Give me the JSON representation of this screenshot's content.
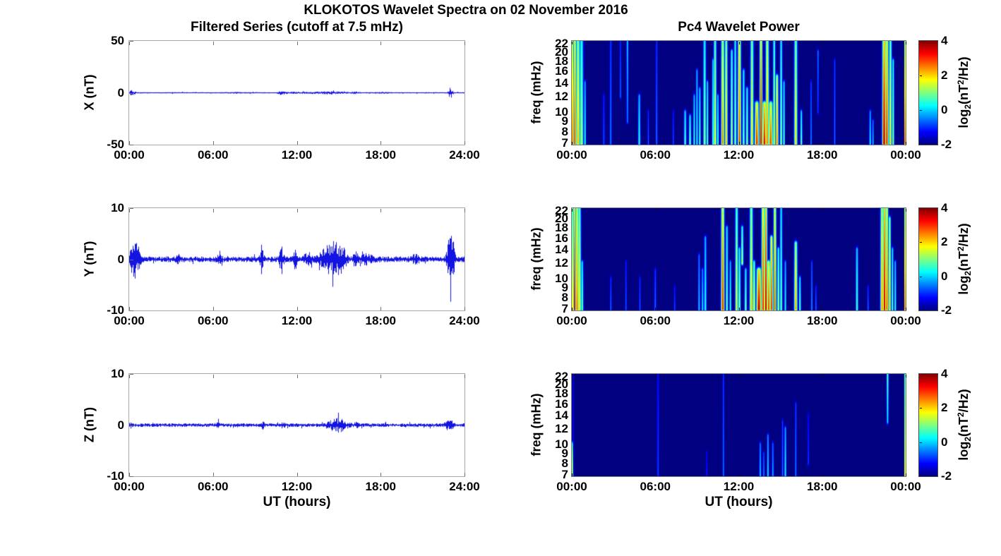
{
  "figure": {
    "title": "KLOKOTOS Wavelet Spectra on 02 November 2016",
    "left_title": "Filtered Series (cutoff at 7.5 mHz)",
    "right_title": "Pc4 Wavelet Power",
    "xlabel": "UT (hours)"
  },
  "axes": {
    "x_ticks_left": [
      "00:00",
      "06:00",
      "12:00",
      "18:00",
      "24:00"
    ],
    "x_ticks_right": [
      "00:00",
      "06:00",
      "12:00",
      "18:00",
      "00:00"
    ],
    "time_range_hours": [
      0,
      24
    ],
    "freq_ticks_mhz": [
      7,
      8,
      9,
      10,
      12,
      14,
      16,
      18,
      20,
      22
    ],
    "freq_range_mhz": [
      6.9,
      22.7
    ],
    "freq_scale": "log",
    "line_color": "#0000e0",
    "background_color": "#ffffff"
  },
  "colorbar": {
    "ticks": [
      4,
      2,
      0,
      -2
    ],
    "range": [
      -2,
      4
    ],
    "colormap": "jet",
    "label_parts": {
      "p1": "log",
      "s1": "2",
      "p2": "(nT",
      "s2": "2",
      "p3": "/Hz)"
    }
  },
  "chart_data": [
    {
      "type": "line",
      "panel": "X filtered series",
      "ylabel": "X (nT)",
      "ylim": [
        -50,
        50
      ],
      "yticks": [
        50,
        0,
        -50
      ],
      "x_hours": [
        0,
        24
      ],
      "baseline": 0,
      "noise_amp_nT": 0.4,
      "bursts_t_w_amp": [
        [
          0.12,
          0.1,
          1.5
        ],
        [
          0.3,
          0.15,
          0.8
        ],
        [
          7.5,
          0.3,
          0.3
        ],
        [
          10.9,
          0.15,
          1.2
        ],
        [
          11.5,
          0.3,
          0.4
        ],
        [
          13.5,
          1.0,
          0.5
        ],
        [
          14.8,
          0.5,
          0.6
        ],
        [
          16.2,
          0.2,
          0.5
        ],
        [
          18.0,
          0.5,
          0.3
        ],
        [
          22.95,
          0.08,
          2.8
        ],
        [
          23.1,
          0.07,
          2.2
        ]
      ]
    },
    {
      "type": "line",
      "panel": "Y filtered series",
      "ylabel": "Y (nT)",
      "ylim": [
        -10,
        10
      ],
      "yticks": [
        10,
        0,
        -10
      ],
      "x_hours": [
        0,
        24
      ],
      "baseline": 0,
      "noise_amp_nT": 0.4,
      "bursts_t_w_amp": [
        [
          0.2,
          0.1,
          1.8
        ],
        [
          0.45,
          0.15,
          2.2
        ],
        [
          0.7,
          0.1,
          1.2
        ],
        [
          3.5,
          0.1,
          0.5
        ],
        [
          6.5,
          0.1,
          0.9
        ],
        [
          9.5,
          0.08,
          1.8
        ],
        [
          10.9,
          0.1,
          1.6
        ],
        [
          11.9,
          0.1,
          1.2
        ],
        [
          12.8,
          0.15,
          0.9
        ],
        [
          14.2,
          0.4,
          1.4
        ],
        [
          14.8,
          0.3,
          1.6
        ],
        [
          15.3,
          0.2,
          1.2
        ],
        [
          16.2,
          0.1,
          1.2
        ],
        [
          17.0,
          0.3,
          0.5
        ],
        [
          20.5,
          0.2,
          0.4
        ],
        [
          22.9,
          0.12,
          2.6
        ],
        [
          23.15,
          0.1,
          3.2
        ]
      ]
    },
    {
      "type": "line",
      "panel": "Z filtered series",
      "ylabel": "Z (nT)",
      "ylim": [
        -10,
        10
      ],
      "yticks": [
        10,
        0,
        -10
      ],
      "x_hours": [
        0,
        24
      ],
      "baseline": 0,
      "noise_amp_nT": 0.25,
      "bursts_t_w_amp": [
        [
          0.1,
          0.1,
          0.3
        ],
        [
          6.3,
          0.08,
          0.5
        ],
        [
          9.6,
          0.06,
          0.7
        ],
        [
          11.0,
          0.1,
          0.3
        ],
        [
          14.9,
          0.45,
          0.9
        ],
        [
          16.3,
          0.1,
          0.4
        ],
        [
          22.8,
          0.15,
          0.5
        ],
        [
          23.1,
          0.1,
          0.4
        ]
      ]
    },
    {
      "type": "heatmap",
      "panel": "X wavelet power",
      "ylabel": "freq (mHz)",
      "value_units": "log2(nT^2/Hz)",
      "background_power": -2,
      "events_t_w_fbright_ffar_power": [
        [
          0.05,
          0.03,
          7,
          22.7,
          4.3
        ],
        [
          0.22,
          0.07,
          7,
          22.7,
          3.3
        ],
        [
          0.45,
          0.1,
          7,
          22.7,
          2.3
        ],
        [
          0.7,
          0.09,
          7,
          22.7,
          1.5
        ],
        [
          0.95,
          0.05,
          7,
          14,
          0.6
        ],
        [
          2.3,
          0.05,
          7,
          12,
          -0.7
        ],
        [
          2.8,
          0.05,
          7,
          22.7,
          -0.4
        ],
        [
          3.5,
          0.04,
          12,
          22.7,
          -0.5
        ],
        [
          4.0,
          0.05,
          22.7,
          9,
          0.1
        ],
        [
          4.85,
          0.06,
          7,
          12,
          0.6
        ],
        [
          5.5,
          0.04,
          7,
          10,
          -0.6
        ],
        [
          6.1,
          0.05,
          7,
          22.7,
          -0.5
        ],
        [
          7.3,
          0.04,
          7,
          10,
          -0.7
        ],
        [
          8.15,
          0.06,
          7,
          10,
          0.9
        ],
        [
          8.5,
          0.06,
          7,
          9.5,
          1.1
        ],
        [
          8.8,
          0.05,
          7,
          12,
          0.7
        ],
        [
          9.0,
          0.05,
          7,
          16,
          0.6
        ],
        [
          9.2,
          0.05,
          7,
          13,
          0.9
        ],
        [
          9.55,
          0.07,
          7,
          22.7,
          1.3
        ],
        [
          9.75,
          0.05,
          7,
          14,
          1.0
        ],
        [
          10.15,
          0.05,
          7,
          18,
          0.9
        ],
        [
          10.3,
          0.07,
          7,
          22.7,
          1.9
        ],
        [
          10.5,
          0.05,
          7,
          12,
          0.9
        ],
        [
          10.85,
          0.08,
          7,
          22.7,
          2.7
        ],
        [
          11.1,
          0.07,
          7,
          22.7,
          2.3
        ],
        [
          11.5,
          0.06,
          7,
          20,
          1.6
        ],
        [
          11.75,
          0.06,
          7,
          22.7,
          1.3
        ],
        [
          12.05,
          0.08,
          7,
          22.7,
          3.1
        ],
        [
          12.35,
          0.06,
          7,
          16,
          1.1
        ],
        [
          12.6,
          0.06,
          7,
          13,
          1.3
        ],
        [
          12.95,
          0.08,
          7,
          22.7,
          2.1
        ],
        [
          13.3,
          0.1,
          7,
          11,
          3.3
        ],
        [
          13.6,
          0.07,
          7,
          22.7,
          3.7
        ],
        [
          13.85,
          0.1,
          7,
          11,
          3.5
        ],
        [
          14.05,
          0.08,
          7,
          22.7,
          2.7
        ],
        [
          14.3,
          0.1,
          7,
          11,
          3.1
        ],
        [
          14.55,
          0.06,
          7,
          22.7,
          1.7
        ],
        [
          14.75,
          0.07,
          7,
          15,
          2.7
        ],
        [
          15.05,
          0.06,
          7,
          22.7,
          1.3
        ],
        [
          15.25,
          0.05,
          7,
          14,
          1.0
        ],
        [
          16.1,
          0.08,
          7,
          22.7,
          2.1
        ],
        [
          16.5,
          0.05,
          7,
          10,
          1.1
        ],
        [
          17.2,
          0.04,
          7,
          14,
          -0.3
        ],
        [
          17.7,
          0.04,
          20,
          10,
          -0.4
        ],
        [
          18.9,
          0.04,
          7,
          18,
          -0.4
        ],
        [
          21.45,
          0.05,
          7,
          10,
          0.4
        ],
        [
          21.65,
          0.04,
          7,
          9,
          0.2
        ],
        [
          22.45,
          0.09,
          7,
          22.7,
          3.9
        ],
        [
          22.65,
          0.08,
          7,
          22.7,
          3.4
        ],
        [
          22.9,
          0.07,
          7,
          22.7,
          2.1
        ],
        [
          23.1,
          0.05,
          7,
          18,
          1.4
        ],
        [
          23.95,
          0.03,
          7,
          22.7,
          4.3
        ]
      ]
    },
    {
      "type": "heatmap",
      "panel": "Y wavelet power",
      "ylabel": "freq (mHz)",
      "value_units": "log2(nT^2/Hz)",
      "background_power": -2,
      "events_t_w_fbright_ffar_power": [
        [
          0.05,
          0.03,
          7,
          22.7,
          3.2
        ],
        [
          0.2,
          0.06,
          7,
          22.7,
          3.9
        ],
        [
          0.38,
          0.08,
          7,
          22.7,
          2.9
        ],
        [
          0.55,
          0.08,
          7,
          22.7,
          2.0
        ],
        [
          0.75,
          0.06,
          7,
          12,
          1.1
        ],
        [
          2.8,
          0.04,
          7,
          10,
          -0.5
        ],
        [
          3.9,
          0.04,
          7,
          12,
          -0.6
        ],
        [
          4.9,
          0.04,
          7,
          10,
          -0.6
        ],
        [
          6.0,
          0.05,
          7,
          11,
          -0.5
        ],
        [
          7.4,
          0.04,
          7,
          9,
          -0.7
        ],
        [
          9.15,
          0.05,
          7,
          13,
          0.1
        ],
        [
          9.4,
          0.05,
          7,
          11,
          0.3
        ],
        [
          9.6,
          0.06,
          7,
          16,
          0.6
        ],
        [
          10.85,
          0.08,
          7,
          22.7,
          3.3
        ],
        [
          11.15,
          0.06,
          7,
          18,
          1.1
        ],
        [
          11.4,
          0.05,
          7,
          12,
          0.7
        ],
        [
          11.85,
          0.07,
          7,
          22.7,
          1.9
        ],
        [
          12.05,
          0.06,
          7,
          14,
          1.3
        ],
        [
          12.25,
          0.06,
          12,
          18,
          1.6
        ],
        [
          12.5,
          0.06,
          7,
          11,
          1.1
        ],
        [
          12.9,
          0.08,
          7,
          22.7,
          2.3
        ],
        [
          13.1,
          0.07,
          7,
          12,
          1.9
        ],
        [
          13.45,
          0.12,
          7,
          11,
          3.7
        ],
        [
          13.75,
          0.08,
          7,
          22.7,
          3.3
        ],
        [
          13.95,
          0.07,
          7,
          22.7,
          3.9
        ],
        [
          14.15,
          0.08,
          7,
          12,
          3.1
        ],
        [
          14.35,
          0.07,
          7,
          16,
          3.3
        ],
        [
          14.6,
          0.07,
          7,
          22.7,
          3.1
        ],
        [
          14.85,
          0.06,
          7,
          14,
          1.5
        ],
        [
          15.05,
          0.06,
          7,
          22.7,
          1.1
        ],
        [
          15.35,
          0.05,
          7,
          12,
          0.5
        ],
        [
          16.1,
          0.08,
          7,
          15,
          2.5
        ],
        [
          16.4,
          0.05,
          7,
          10,
          1.1
        ],
        [
          17.25,
          0.04,
          7,
          12,
          -0.2
        ],
        [
          17.55,
          0.04,
          7,
          9,
          -0.5
        ],
        [
          20.5,
          0.06,
          7,
          14,
          0.9
        ],
        [
          21.3,
          0.04,
          7,
          9,
          -0.5
        ],
        [
          22.3,
          0.08,
          7,
          22.7,
          2.7
        ],
        [
          22.48,
          0.07,
          7,
          22.7,
          3.9
        ],
        [
          22.65,
          0.07,
          7,
          22.7,
          3.1
        ],
        [
          22.85,
          0.06,
          7,
          20,
          2.3
        ],
        [
          23.05,
          0.05,
          7,
          14,
          1.1
        ],
        [
          23.25,
          0.05,
          7,
          12,
          0.7
        ],
        [
          23.95,
          0.03,
          7,
          22.7,
          4.1
        ]
      ]
    },
    {
      "type": "heatmap",
      "panel": "Z wavelet power",
      "ylabel": "freq (mHz)",
      "value_units": "log2(nT^2/Hz)",
      "background_power": -2,
      "events_t_w_fbright_ffar_power": [
        [
          0.04,
          0.03,
          7,
          10,
          2.6
        ],
        [
          0.1,
          0.03,
          7,
          22.7,
          -0.9
        ],
        [
          6.2,
          0.05,
          7,
          22.7,
          -0.8
        ],
        [
          9.7,
          0.04,
          7,
          9,
          -1.0
        ],
        [
          10.9,
          0.04,
          7,
          22.7,
          -0.4
        ],
        [
          13.55,
          0.05,
          7,
          10,
          0.1
        ],
        [
          13.8,
          0.04,
          7,
          9,
          -0.3
        ],
        [
          14.1,
          0.05,
          7,
          11,
          0.3
        ],
        [
          14.45,
          0.05,
          7,
          10,
          -0.1
        ],
        [
          15.15,
          0.04,
          7,
          13,
          -0.4
        ],
        [
          15.35,
          0.05,
          7,
          12,
          0.5
        ],
        [
          16.1,
          0.04,
          7,
          16,
          -0.3
        ],
        [
          17.0,
          0.04,
          8,
          14,
          -0.8
        ],
        [
          22.7,
          0.05,
          22.7,
          13,
          1.0
        ],
        [
          23.95,
          0.03,
          7,
          22.7,
          3.1
        ]
      ]
    }
  ]
}
